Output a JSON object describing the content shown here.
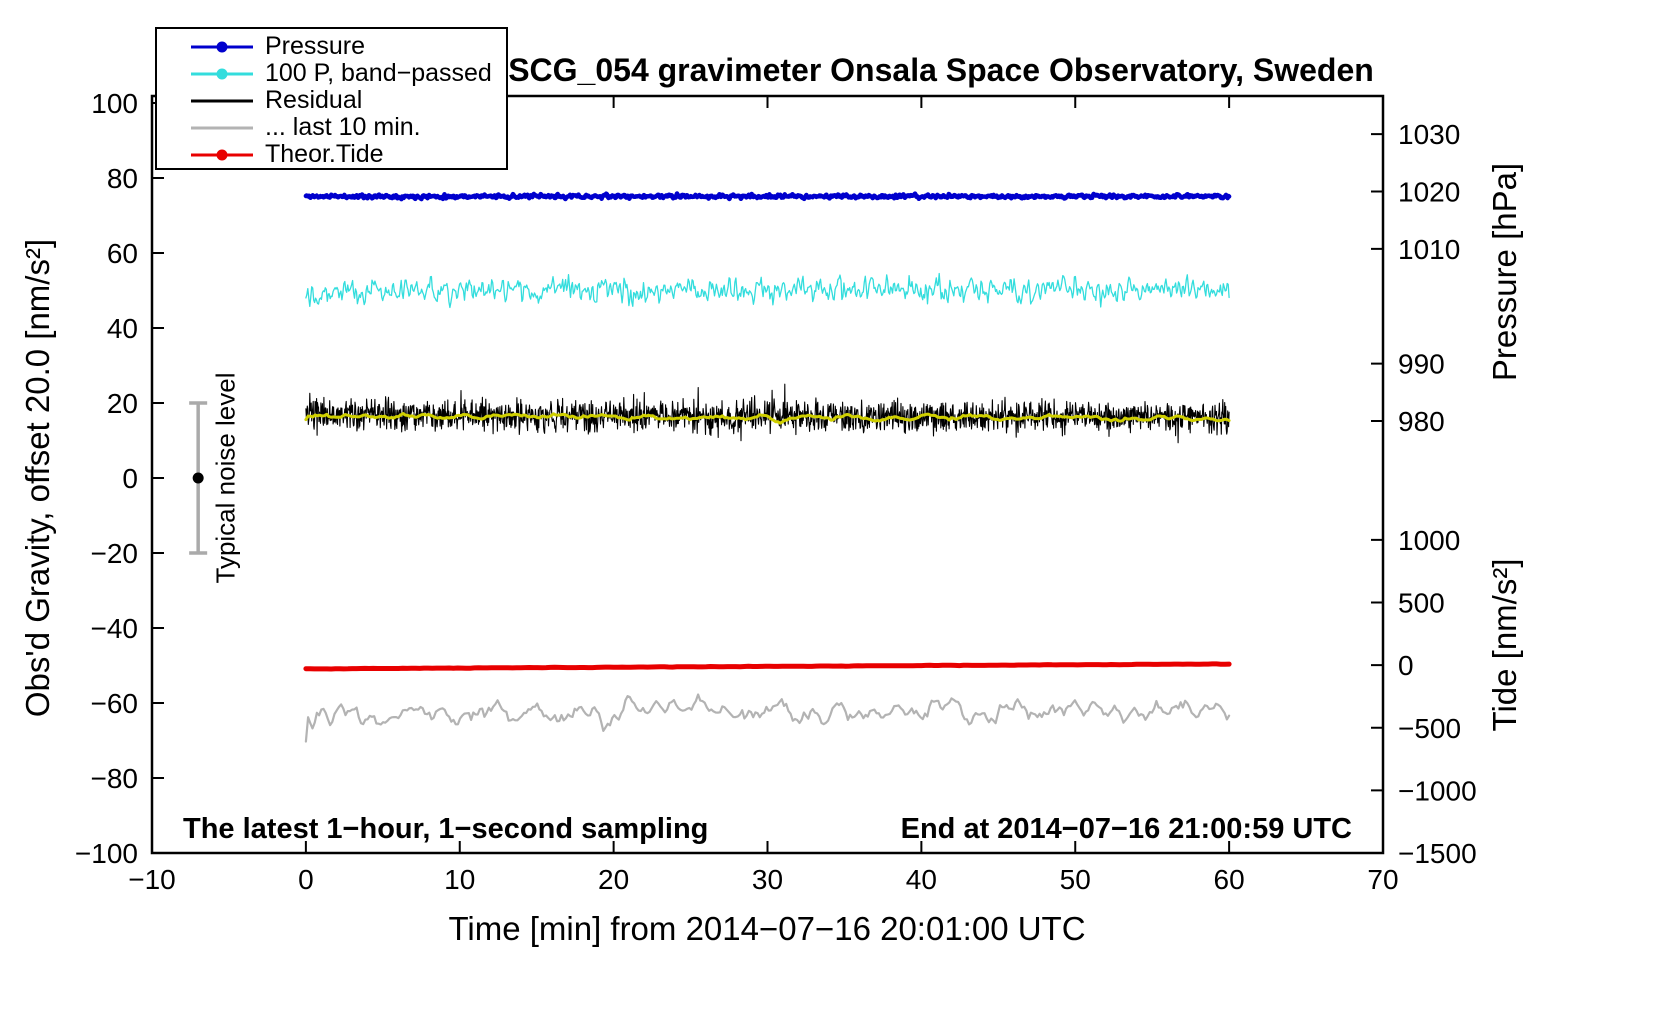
{
  "chart_data": {
    "type": "line",
    "title": "SCG_054 gravimeter Onsala Space Observatory, Sweden",
    "xlabel": "Time [min] from 2014−07−16 20:01:00 UTC",
    "ylabel_left": "Obs'd Gravity, offset 20.0 [nm/s²]",
    "xlim": [
      -10,
      70
    ],
    "ylim_left": [
      -100,
      100
    ],
    "x_ticks": [
      -10,
      0,
      10,
      20,
      30,
      40,
      50,
      60,
      70
    ],
    "y_ticks_left": [
      -100,
      -80,
      -60,
      -40,
      -20,
      0,
      20,
      40,
      60,
      80,
      100
    ],
    "grid": false,
    "legend_position": "top-left",
    "right_axis_pressure": {
      "label": "Pressure [hPa]",
      "ticks": [
        [
          1030,
          91.7
        ],
        [
          1020,
          76.4
        ],
        [
          1010,
          61.1
        ],
        [
          990,
          30.5
        ],
        [
          980,
          15.2
        ]
      ]
    },
    "right_axis_tide": {
      "label": "Tide [nm/s²]",
      "ticks": [
        [
          1000,
          -16.5
        ],
        [
          500,
          -33.2
        ],
        [
          0,
          -49.9
        ],
        [
          -500,
          -66.6
        ],
        [
          -1000,
          -83.3
        ],
        [
          -1500,
          -100
        ]
      ]
    },
    "legend": [
      {
        "label": "Pressure",
        "color": "#0000cd",
        "marker": "dot-line"
      },
      {
        "label": "100 P, band−passed",
        "color": "#33dddd",
        "marker": "dot-line"
      },
      {
        "label": "Residual",
        "color": "#000000",
        "marker": "line"
      },
      {
        "label": "... last 10 min.",
        "color": "#b3b3b3",
        "marker": "line"
      },
      {
        "label": "Theor.Tide",
        "color": "#e80000",
        "marker": "dot-line"
      }
    ],
    "series": [
      {
        "name": "100 P, band−passed",
        "color": "#33dddd",
        "width": 1.3,
        "x0": 0,
        "x1": 60,
        "points": 950,
        "base": 49.8,
        "slope": 0.01,
        "noise": 1.5,
        "smooth": 2,
        "seed": 22
      },
      {
        "name": "Residual",
        "color": "#000000",
        "width": 1.1,
        "x0": 0,
        "x1": 60,
        "points": 1900,
        "base": 16.8,
        "slope": -0.012,
        "noise": 2.0,
        "smooth": 1,
        "seed": 33,
        "spike_prob": 0.06,
        "spike_amp": 4.5
      },
      {
        "name": "Residual smoothed",
        "color": "#cfcf00",
        "width": 3,
        "x0": 0,
        "x1": 60,
        "points": 400,
        "base": 16.5,
        "slope": -0.01,
        "noise": 0.45,
        "smooth": 6,
        "seed": 44
      },
      {
        "name": "Pressure",
        "color": "#0000cd",
        "width": 4.5,
        "x0": 0,
        "x1": 60,
        "points": 1200,
        "base": 75.1,
        "slope": 0,
        "noise": 0.25,
        "smooth": 2,
        "seed": 11
      },
      {
        "name": "Theor.Tide",
        "color": "#e80000",
        "width": 5,
        "x0": 0,
        "x1": 60,
        "points": 220,
        "base": -50.9,
        "slope": 0.022,
        "noise": 0.03,
        "smooth": 2,
        "seed": 55
      },
      {
        "name": "... last 10 min.",
        "color": "#b3b3b3",
        "width": 2.2,
        "x0": 0,
        "x1": 60,
        "points": 420,
        "base": -62.2,
        "slope": 0,
        "noise": 1.6,
        "smooth": 5,
        "seed": 66
      }
    ],
    "noise_bar": {
      "x": -7,
      "center": 0,
      "half_height": 20,
      "label": "Typical noise level",
      "bar_color": "#aaaaaa",
      "dot_color": "#000000"
    },
    "annotations": {
      "sampling": "The latest 1−hour, 1−second sampling",
      "end_time": "End at 2014−07−16 21:00:59 UTC"
    }
  }
}
